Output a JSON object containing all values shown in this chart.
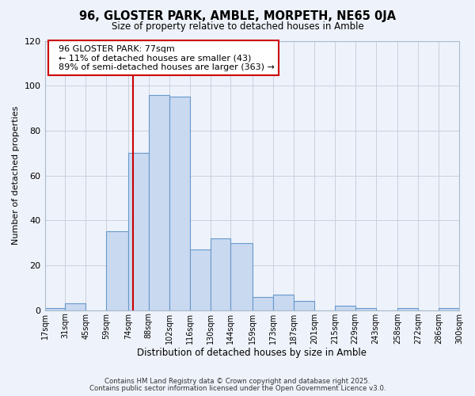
{
  "title": "96, GLOSTER PARK, AMBLE, MORPETH, NE65 0JA",
  "subtitle": "Size of property relative to detached houses in Amble",
  "xlabel": "Distribution of detached houses by size in Amble",
  "ylabel": "Number of detached properties",
  "bin_labels": [
    "17sqm",
    "31sqm",
    "45sqm",
    "59sqm",
    "74sqm",
    "88sqm",
    "102sqm",
    "116sqm",
    "130sqm",
    "144sqm",
    "159sqm",
    "173sqm",
    "187sqm",
    "201sqm",
    "215sqm",
    "229sqm",
    "243sqm",
    "258sqm",
    "272sqm",
    "286sqm",
    "300sqm"
  ],
  "bin_edges": [
    17,
    31,
    45,
    59,
    74,
    88,
    102,
    116,
    130,
    144,
    159,
    173,
    187,
    201,
    215,
    229,
    243,
    258,
    272,
    286,
    300
  ],
  "bar_values": [
    1,
    3,
    0,
    35,
    70,
    96,
    95,
    27,
    32,
    30,
    6,
    7,
    4,
    0,
    2,
    1,
    0,
    1,
    0,
    1
  ],
  "bar_color": "#c9d9f0",
  "bar_edge_color": "#6699cc",
  "ylim": [
    0,
    120
  ],
  "yticks": [
    0,
    20,
    40,
    60,
    80,
    100,
    120
  ],
  "vline_x": 77,
  "vline_color": "#cc0000",
  "annotation_title": "96 GLOSTER PARK: 77sqm",
  "annotation_line1": "← 11% of detached houses are smaller (43)",
  "annotation_line2": "89% of semi-detached houses are larger (363) →",
  "annotation_box_color": "#cc0000",
  "footer1": "Contains HM Land Registry data © Crown copyright and database right 2025.",
  "footer2": "Contains public sector information licensed under the Open Government Licence v3.0.",
  "bg_color": "#eef2fa",
  "grid_color": "#c8cfe0"
}
